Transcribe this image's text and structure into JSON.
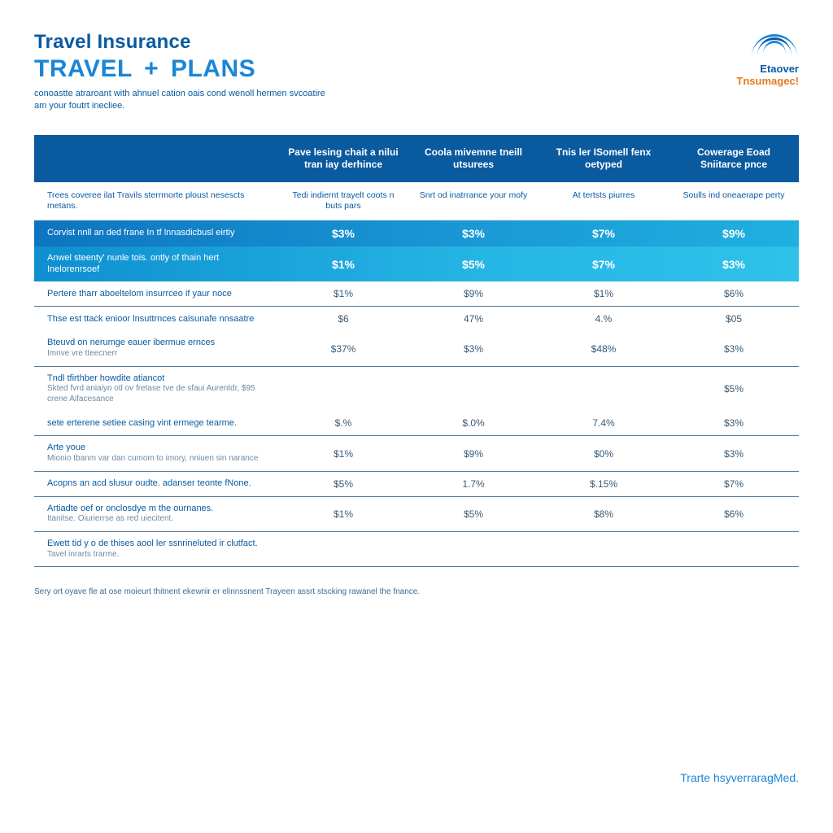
{
  "header": {
    "title_line1": "Travel Insurance",
    "title_line2_a": "TRAVEL",
    "title_line2_plus": "+",
    "title_line2_b": "PLANS",
    "subtitle": "conoastte atraroant with ahnuel cation oais cond wenoll hermen svcoatire am your foutrt inecliee."
  },
  "logo": {
    "line1": "Etaover",
    "line2": "Tnsumagec!"
  },
  "colors": {
    "header_bg": "#0a5aa0",
    "highlight1": "#1a9ad6",
    "highlight2": "#26b6e5",
    "rule": "#5a7a94",
    "text_primary": "#0a5aa0",
    "text_cell": "#375a76"
  },
  "table": {
    "columns": [
      "",
      "Pave lesing chait a nilui tran iay derhince",
      "Coola mivemne tneill utsurees",
      "Tnis ler ISomell fenx oetyped",
      "Cowerage Eoad Sniitarce pnce"
    ],
    "subcolumns": [
      "Trees coveree ilat Travils sterrmorte ploust nesescts metans.",
      "Tedi indiernt trayelt coots n buts pars",
      "Snrt od inatrrance your mofy",
      "At tertsts piurres",
      "Soulls ind oneaerape perty"
    ],
    "highlight_rows": [
      {
        "label": "Corvist nnll an ded frane In tf lnnasdicbusl eirtiy",
        "values": [
          "$3%",
          "$3%",
          "$7%",
          "$9%"
        ]
      },
      {
        "label": "Anwel steenty' nunle tois. ontly of thain hert Inelorenrsoef",
        "values": [
          "$1%",
          "$5%",
          "$7%",
          "$3%"
        ]
      }
    ],
    "rows": [
      {
        "label": "Pertere tharr aboeltelom insurrceo if yaur noce",
        "values": [
          "$1%",
          "$9%",
          "$1%",
          "$6%"
        ],
        "border": true
      },
      {
        "label": "Thse est ttack enioor lnsuttrnces caisunafe nnsaatre",
        "values": [
          "$6",
          "47%",
          "4.%",
          "$05"
        ],
        "border": false
      },
      {
        "label": "Bteuvd on nerumge eauer ibermue ernces",
        "sub": "Imnve vre tteecnerr",
        "values": [
          "$37%",
          "$3%",
          "$48%",
          "$3%"
        ],
        "border": true
      },
      {
        "label": "Tndl tfirthber howdite atiancot",
        "sub": "Skted fvrd aniaiyn otl ov fretase tve de sfaui Aurentdr,  $95 crene  Aifacesance",
        "values": [
          "",
          "",
          "",
          "$5%"
        ],
        "border": false
      },
      {
        "label": "sete erterene setiee casing  vint ermege tearme.",
        "values": [
          "$.%",
          "$.0%",
          "7.4%",
          "$3%"
        ],
        "border": true
      },
      {
        "label": "Arte youe",
        "sub": "Mionio tbanm var dan cumom to imory,  nniuen sin narance",
        "values": [
          "$1%",
          "$9%",
          "$0%",
          "$3%"
        ],
        "border": true
      },
      {
        "label": "Acopns an acd slusur oudte. adanser teonte fNone.",
        "values": [
          "$5%",
          "1.7%",
          "$.15%",
          "$7%"
        ],
        "border": true
      },
      {
        "label": "Artiadte oef or onclosdye m the ournanes.",
        "sub": "Itanitse.  Oiurierrse as red uiecitent.",
        "values": [
          "$1%",
          "$5%",
          "$8%",
          "$6%"
        ],
        "border": true
      },
      {
        "label": "Ewett tid y o de thises aool ler ssnrineluted ir clutfact.",
        "sub": "Tavel inrarts trarme.",
        "values": [
          "",
          "",
          "",
          ""
        ],
        "border": true
      }
    ]
  },
  "footer": {
    "note": "Sery ort oyave fle at ose moieurt thitnent ekewriir er elinnssnent Trayeen assrt stscking rawanel the fnance.",
    "brand": "Trarte hsyverraragMed."
  }
}
